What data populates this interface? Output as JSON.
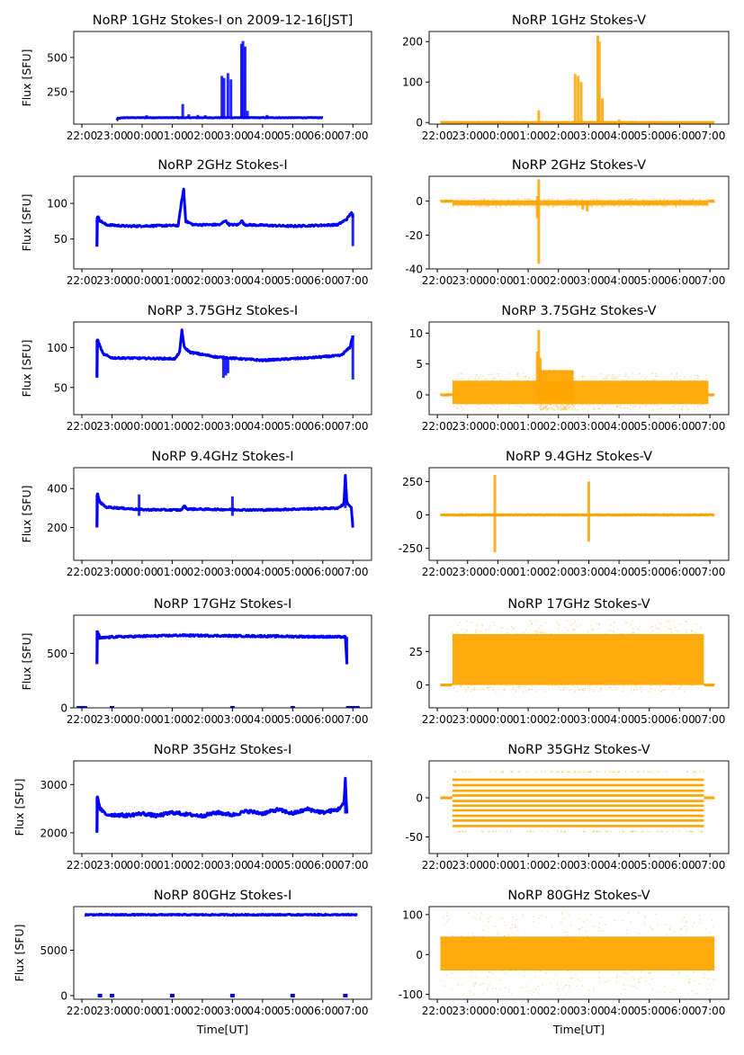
{
  "chart_data": [
    {
      "type": "scatter",
      "title": "NoRP 1GHz Stokes-I on 2009-12-16[JST]",
      "ylabel": "Flux [SFU]",
      "xlabel": "",
      "color": "#0000ff",
      "ylim": [
        13,
        690
      ],
      "yticks": [
        250,
        500
      ],
      "lines": [
        [
          [
            1.15,
            40
          ],
          [
            1.2,
            55
          ],
          [
            1.4,
            60
          ],
          [
            8.0,
            60
          ]
        ]
      ],
      "jitter": 2,
      "spikes": [
        [
          2.15,
          60,
          78
        ],
        [
          3.35,
          60,
          160
        ],
        [
          3.55,
          60,
          85
        ],
        [
          3.85,
          60,
          80
        ],
        [
          4.1,
          60,
          78
        ],
        [
          4.65,
          60,
          365
        ],
        [
          4.72,
          60,
          350
        ],
        [
          4.85,
          60,
          385
        ],
        [
          4.95,
          60,
          340
        ],
        [
          5.3,
          60,
          600
        ],
        [
          5.35,
          60,
          620
        ],
        [
          5.42,
          60,
          580
        ],
        [
          5.5,
          60,
          110
        ],
        [
          6.15,
          60,
          80
        ]
      ]
    },
    {
      "type": "scatter",
      "title": "NoRP 1GHz Stokes-V",
      "ylabel": "",
      "xlabel": "",
      "color": "#ffa500",
      "ylim": [
        -4,
        225
      ],
      "yticks": [
        0,
        100,
        200
      ],
      "lines": [
        [
          [
            0.1,
            0
          ],
          [
            9.15,
            0
          ]
        ]
      ],
      "jitter": 0.5,
      "spikes": [
        [
          3.35,
          0,
          30
        ],
        [
          4.55,
          0,
          120
        ],
        [
          4.65,
          0,
          115
        ],
        [
          4.75,
          0,
          100
        ],
        [
          5.3,
          0,
          215
        ],
        [
          5.35,
          0,
          200
        ],
        [
          5.45,
          0,
          60
        ],
        [
          6.0,
          0,
          8
        ]
      ]
    },
    {
      "type": "scatter",
      "title": "NoRP 2GHz Stokes-I",
      "ylabel": "Flux [SFU]",
      "xlabel": "",
      "color": "#0000ff",
      "ylim": [
        8,
        138
      ],
      "yticks": [
        50,
        100
      ],
      "lines": [
        [
          [
            0.5,
            40
          ],
          [
            0.52,
            82
          ],
          [
            0.6,
            76
          ],
          [
            0.8,
            70
          ],
          [
            1.5,
            68
          ],
          [
            3.2,
            69
          ],
          [
            3.3,
            100
          ],
          [
            3.38,
            120
          ],
          [
            3.45,
            75
          ],
          [
            3.7,
            70
          ],
          [
            4.6,
            70
          ],
          [
            4.75,
            76
          ],
          [
            4.9,
            70
          ],
          [
            5.2,
            70
          ],
          [
            5.3,
            76
          ],
          [
            5.4,
            70
          ],
          [
            7,
            68
          ],
          [
            8.5,
            70
          ],
          [
            8.8,
            78
          ],
          [
            8.95,
            87
          ],
          [
            9.0,
            80
          ]
        ]
      ],
      "jitter": 1.2,
      "spikes": [
        [
          0.5,
          40,
          80
        ],
        [
          9.0,
          40,
          86
        ]
      ]
    },
    {
      "type": "scatter",
      "title": "NoRP 2GHz Stokes-V",
      "ylabel": "",
      "xlabel": "",
      "color": "#ffa500",
      "ylim": [
        -40,
        14.7
      ],
      "yticks": [
        -40,
        -20,
        0
      ],
      "lines": [
        [
          [
            0.1,
            0
          ],
          [
            0.5,
            0
          ]
        ],
        [
          [
            8.95,
            0
          ],
          [
            9.15,
            0
          ]
        ]
      ],
      "jitter": 0.2,
      "bands": [
        [
          0.5,
          8.95,
          -2.5,
          0.5
        ]
      ],
      "noise": [
        -3.5,
        1.5
      ],
      "spikes": [
        [
          3.35,
          -37,
          13
        ],
        [
          3.3,
          -10,
          3
        ],
        [
          4.8,
          -5,
          0
        ],
        [
          4.95,
          -6,
          0
        ]
      ]
    },
    {
      "type": "scatter",
      "title": "NoRP 3.75GHz Stokes-I",
      "ylabel": "Flux [SFU]",
      "xlabel": "",
      "color": "#0000ff",
      "ylim": [
        16,
        132
      ],
      "yticks": [
        50,
        100
      ],
      "lines": [
        [
          [
            0.5,
            62
          ],
          [
            0.52,
            110
          ],
          [
            0.7,
            92
          ],
          [
            1,
            87
          ],
          [
            3.1,
            86
          ],
          [
            3.25,
            95
          ],
          [
            3.32,
            122
          ],
          [
            3.4,
            100
          ],
          [
            3.6,
            94
          ],
          [
            4.5,
            88
          ],
          [
            6,
            84
          ],
          [
            7.5,
            87
          ],
          [
            8.6,
            90
          ],
          [
            8.9,
            100
          ],
          [
            9.0,
            115
          ]
        ]
      ],
      "jitter": 1,
      "spikes": [
        [
          0.5,
          62,
          110
        ],
        [
          4.7,
          62,
          86
        ],
        [
          4.78,
          65,
          86
        ],
        [
          4.85,
          68,
          86
        ],
        [
          9.0,
          60,
          115
        ]
      ]
    },
    {
      "type": "scatter",
      "title": "NoRP 3.75GHz Stokes-V",
      "ylabel": "",
      "xlabel": "",
      "color": "#ffa500",
      "ylim": [
        -3.2,
        11.8
      ],
      "yticks": [
        0,
        5,
        10
      ],
      "lines": [
        [
          [
            0.1,
            0
          ],
          [
            0.5,
            0
          ]
        ],
        [
          [
            8.95,
            0
          ],
          [
            9.15,
            0
          ]
        ]
      ],
      "jitter": 0.05,
      "bands": [
        [
          0.5,
          8.95,
          -1.5,
          2.3
        ],
        [
          3.35,
          4.5,
          -1,
          4
        ]
      ],
      "noise": [
        -2.5,
        3.5
      ],
      "spikes": [
        [
          3.3,
          0,
          7
        ],
        [
          3.35,
          0,
          10.5
        ],
        [
          3.4,
          0,
          6
        ]
      ]
    },
    {
      "type": "scatter",
      "title": "NoRP 9.4GHz Stokes-I",
      "ylabel": "Flux [SFU]",
      "xlabel": "",
      "color": "#0000ff",
      "ylim": [
        32,
        507
      ],
      "yticks": [
        200,
        400
      ],
      "lines": [
        [
          [
            0.5,
            200
          ],
          [
            0.52,
            370
          ],
          [
            0.6,
            330
          ],
          [
            0.8,
            305
          ],
          [
            2,
            292
          ],
          [
            3.3,
            290
          ],
          [
            3.4,
            310
          ],
          [
            3.5,
            295
          ],
          [
            6,
            290
          ],
          [
            8.5,
            300
          ],
          [
            8.7,
            320
          ],
          [
            8.75,
            465
          ],
          [
            8.8,
            330
          ],
          [
            8.95,
            300
          ],
          [
            9.0,
            200
          ]
        ]
      ],
      "jitter": 4,
      "spikes": [
        [
          1.9,
          260,
          370
        ],
        [
          5.0,
          260,
          360
        ],
        [
          0.5,
          200,
          370
        ],
        [
          8.75,
          300,
          465
        ]
      ]
    },
    {
      "type": "scatter",
      "title": "NoRP 9.4GHz Stokes-V",
      "ylabel": "",
      "xlabel": "",
      "color": "#ffa500",
      "ylim": [
        -340,
        354
      ],
      "yticks": [
        -250,
        0,
        250
      ],
      "lines": [
        [
          [
            0.1,
            0
          ],
          [
            9.15,
            0
          ]
        ]
      ],
      "jitter": 2,
      "bands": [
        [
          0.5,
          8.95,
          -6,
          6
        ]
      ],
      "noise": [
        -10,
        10
      ],
      "spikes": [
        [
          1.9,
          -280,
          300
        ],
        [
          5.0,
          -200,
          250
        ]
      ]
    },
    {
      "type": "scatter",
      "title": "NoRP 17GHz Stokes-I",
      "ylabel": "Flux [SFU]",
      "xlabel": "",
      "color": "#0000ff",
      "ylim": [
        0,
        850
      ],
      "yticks": [
        0,
        500
      ],
      "lines": [
        [
          [
            0.5,
            400
          ],
          [
            0.52,
            700
          ],
          [
            0.6,
            640
          ],
          [
            1,
            650
          ],
          [
            3.3,
            665
          ],
          [
            5,
            660
          ],
          [
            7,
            655
          ],
          [
            8.75,
            650
          ],
          [
            8.8,
            400
          ]
        ]
      ],
      "jitter": 8,
      "spikes": [
        [
          0.5,
          400,
          710
        ],
        [
          8.8,
          400,
          650
        ]
      ],
      "points": [
        [
          -0.1,
          0
        ],
        [
          0.0,
          0
        ],
        [
          0.1,
          0
        ],
        [
          1.0,
          0
        ],
        [
          5.0,
          0
        ],
        [
          7.0,
          0
        ],
        [
          8.85,
          0
        ],
        [
          8.95,
          0
        ],
        [
          9.05,
          0
        ],
        [
          9.15,
          0
        ]
      ]
    },
    {
      "type": "scatter",
      "title": "NoRP 17GHz Stokes-V",
      "ylabel": "",
      "xlabel": "",
      "color": "#ffa500",
      "ylim": [
        -17,
        52
      ],
      "yticks": [
        0,
        25
      ],
      "lines": [
        [
          [
            0.1,
            0
          ],
          [
            0.5,
            0
          ]
        ],
        [
          [
            8.8,
            0
          ],
          [
            9.15,
            0
          ]
        ]
      ],
      "jitter": 0.2,
      "bands": [
        [
          0.5,
          8.8,
          0,
          38
        ]
      ],
      "noise": [
        -5,
        48
      ]
    },
    {
      "type": "scatter",
      "title": "NoRP 35GHz Stokes-I",
      "ylabel": "Flux [SFU]",
      "xlabel": "",
      "color": "#0000ff",
      "ylim": [
        1570,
        3490
      ],
      "yticks": [
        2000,
        3000
      ],
      "lines": [
        [
          [
            0.5,
            2000
          ],
          [
            0.52,
            2750
          ],
          [
            0.6,
            2500
          ],
          [
            0.8,
            2380
          ],
          [
            1.5,
            2360
          ],
          [
            2,
            2400
          ],
          [
            2.5,
            2350
          ],
          [
            3,
            2420
          ],
          [
            3.5,
            2380
          ],
          [
            4,
            2350
          ],
          [
            4.5,
            2420
          ],
          [
            5,
            2370
          ],
          [
            5.5,
            2450
          ],
          [
            6,
            2400
          ],
          [
            6.5,
            2480
          ],
          [
            7,
            2400
          ],
          [
            7.5,
            2490
          ],
          [
            8,
            2420
          ],
          [
            8.5,
            2480
          ],
          [
            8.7,
            2600
          ],
          [
            8.75,
            3100
          ],
          [
            8.8,
            2400
          ]
        ]
      ],
      "jitter": 35,
      "spikes": [
        [
          0.5,
          2000,
          2750
        ],
        [
          8.75,
          2400,
          3100
        ]
      ]
    },
    {
      "type": "scatter",
      "title": "NoRP 35GHz Stokes-V",
      "ylabel": "",
      "xlabel": "",
      "color": "#ffa500",
      "ylim": [
        -71,
        47
      ],
      "yticks": [
        -50,
        0
      ],
      "lines": [
        [
          [
            0.1,
            0
          ],
          [
            0.5,
            0
          ]
        ],
        [
          [
            8.8,
            0
          ],
          [
            9.15,
            0
          ]
        ]
      ],
      "jitter": 0.2,
      "levels": {
        "range": [
          0.5,
          8.8
        ],
        "values": [
          23,
          16,
          9,
          3,
          -4,
          -10,
          -16,
          -23,
          -29,
          -36
        ]
      },
      "sparse_levels": [
        33,
        -43
      ]
    },
    {
      "type": "scatter",
      "title": "NoRP 80GHz Stokes-I",
      "ylabel": "Flux [SFU]",
      "xlabel": "Time[UT]",
      "color": "#0000ff",
      "ylim": [
        -400,
        9800
      ],
      "yticks": [
        0,
        5000
      ],
      "lines": [
        [
          [
            0.1,
            8900
          ],
          [
            9.15,
            8900
          ]
        ]
      ],
      "jitter": 60,
      "points": [
        [
          0.6,
          0
        ],
        [
          1.0,
          0
        ],
        [
          3.0,
          0
        ],
        [
          5.0,
          0
        ],
        [
          7.0,
          0
        ],
        [
          8.75,
          0
        ]
      ]
    },
    {
      "type": "scatter",
      "title": "NoRP 80GHz Stokes-V",
      "ylabel": "",
      "xlabel": "Time[UT]",
      "color": "#ffa500",
      "ylim": [
        -112,
        120
      ],
      "yticks": [
        -100,
        0,
        100
      ],
      "bands": [
        [
          0.1,
          9.15,
          -40,
          45
        ]
      ],
      "noise": [
        -100,
        105
      ]
    }
  ],
  "x_axis": {
    "unit": "hours since 22:00 UT",
    "xlim": [
      -0.27,
      9.62
    ],
    "ticks": [
      0,
      1,
      2,
      3,
      4,
      5,
      6,
      7,
      8,
      9
    ],
    "tick_labels": [
      "22:00",
      "23:00",
      "00:00",
      "01:00",
      "02:00",
      "03:00",
      "04:00",
      "05:00",
      "06:00",
      "07:00"
    ]
  }
}
